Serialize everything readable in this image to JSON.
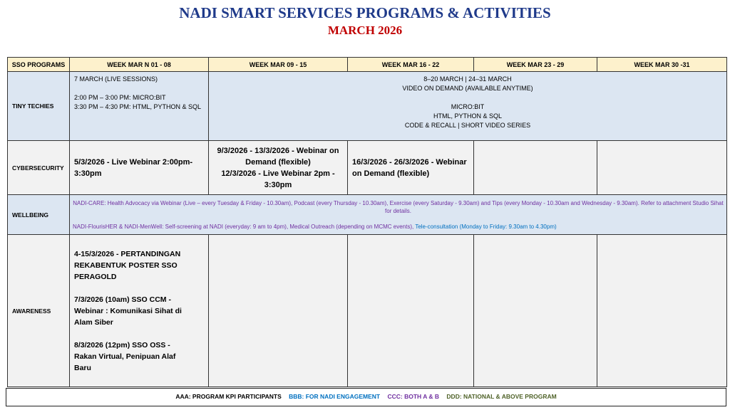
{
  "title": "NADI SMART SERVICES PROGRAMS & ACTIVITIES",
  "subtitle": "MARCH 2026",
  "headers": [
    "SSO PROGRAMS",
    "WEEK MAR N 01 - 08",
    "WEEK MAR  09 - 15",
    "WEEK MAR 16 - 22",
    "WEEK MAR  23 - 29",
    "WEEK MAR 30 -31"
  ],
  "tiny": {
    "label": "TINY TECHIES",
    "w1": [
      "7 MARCH (LIVE SESSIONS)",
      "2:00 PM – 3:00 PM: MICRO:BIT",
      "3:30 PM – 4:30 PM: HTML, PYTHON & SQL"
    ],
    "rest": [
      "8–20 MARCH  |  24–31 MARCH",
      "VIDEO ON DEMAND (AVAILABLE ANYTIME)",
      "MICRO:BIT",
      "HTML, PYTHON & SQL",
      "CODE & RECALL | SHORT VIDEO SERIES"
    ]
  },
  "cyber": {
    "label": "CYBERSECURITY",
    "w1": "5/3/2026 - Live Webinar 2:00pm-3:30pm",
    "w2": [
      "9/3/2026 - 13/3/2026  - Webinar on Demand (flexible)",
      "12/3/2026 - Live Webinar 2pm - 3:30pm"
    ],
    "w3": "16/3/2026 - 26/3/2026 - Webinar on Demand (flexible)"
  },
  "wellbeing": {
    "label": "WELLBEING",
    "line1": "NADI-CARE: Health Advocacy via Webinar (Live – every Tuesday & Friday - 10.30am), Podcast (every Thursday - 10.30am), Exercise (every Saturday - 9.30am) and Tips (every Monday - 10.30am and Wednesday - 9.30am). Refer to attachment Studio Sihat for details.",
    "line2": "NADI-FlourisHER & NADI-MenWell: Self-screening at NADI (everyday: 9 am to 4pm), Medical Outreach (depending on MCMC events), ",
    "line2_blue": "Tele-consultation (Monday to Friday: 9.30am to 4.30pm)"
  },
  "awareness": {
    "label": "AWARENESS",
    "items": [
      "4-15/3/2026 - PERTANDINGAN REKABENTUK POSTER SSO PERAGOLD",
      "7/3/2026 (10am) SSO CCM - Webinar : Komunikasi Sihat di Alam Siber",
      "8/3/2026 (12pm) SSO OSS - Rakan Virtual, Penipuan Alaf Baru"
    ]
  },
  "legend": {
    "aaa": "AAA: PROGRAM KPI PARTICIPANTS",
    "bbb": "BBB:  FOR NADI ENGAGEMENT",
    "ccc": "CCC:  BOTH  A & B",
    "ddd": "DDD: NATIONAL & ABOVE PROGRAM"
  },
  "colors": {
    "title": "#1f3a8a",
    "subtitle": "#c00000",
    "header_bg": "#fdf1cc",
    "blue_row": "#dce6f2",
    "grey_row": "#f2f2f2",
    "bbb": "#0070c0",
    "ccc": "#7030a0",
    "ddd": "#4f6228"
  }
}
